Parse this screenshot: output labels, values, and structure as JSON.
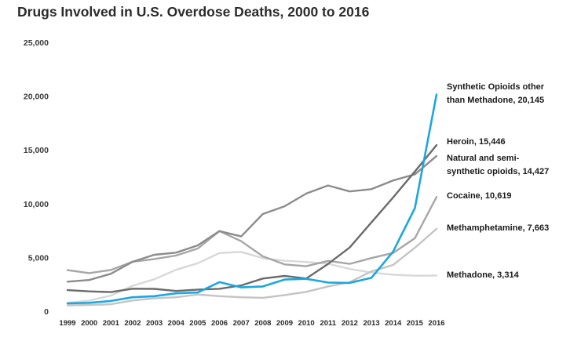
{
  "chart_data": {
    "type": "line",
    "title": "Drugs Involved in U.S. Overdose Deaths, 2000 to 2016",
    "xlabel": "",
    "ylabel": "",
    "x": [
      1999,
      2000,
      2001,
      2002,
      2003,
      2004,
      2005,
      2006,
      2007,
      2008,
      2009,
      2010,
      2011,
      2012,
      2013,
      2014,
      2015,
      2016
    ],
    "x_tick_labels": [
      "1999",
      "2000",
      "2001",
      "2002",
      "2003",
      "2004",
      "2005",
      "2006",
      "2007",
      "2008",
      "2009",
      "2010",
      "2011",
      "2012",
      "2013",
      "2014",
      "2015",
      "2016"
    ],
    "ylim": [
      0,
      25000
    ],
    "y_ticks": [
      0,
      5000,
      10000,
      15000,
      20000,
      25000
    ],
    "y_tick_labels": [
      "0",
      "5,000",
      "10,000",
      "15,000",
      "20,000",
      "25,000"
    ],
    "grid": false,
    "legend": "none",
    "series": [
      {
        "name": "Synthetic Opioids other than Methadone, 20,145",
        "label_lines": [
          "Synthetic Opioids other",
          "than Methadone, 20,145"
        ],
        "color": "#1ca7e0",
        "values": [
          730,
          782,
          957,
          1295,
          1400,
          1664,
          1742,
          2707,
          2213,
          2306,
          2946,
          3007,
          2666,
          2628,
          3105,
          5544,
          9580,
          20145
        ]
      },
      {
        "name": "Heroin, 15,446",
        "label_lines": [
          "Heroin, 15,446"
        ],
        "color": "#6b6b6b",
        "values": [
          1960,
          1842,
          1779,
          2089,
          2080,
          1878,
          2009,
          2088,
          2399,
          3041,
          3278,
          3036,
          4397,
          5925,
          8257,
          10574,
          12989,
          15446
        ]
      },
      {
        "name": "Natural and semi-synthetic opioids, 14,427",
        "label_lines": [
          "Natural and semi-",
          "synthetic opioids, 14,427"
        ],
        "color": "#8c8c8c",
        "values": [
          2749,
          2900,
          3484,
          4596,
          5250,
          5447,
          6120,
          7450,
          6950,
          9040,
          9760,
          10940,
          11693,
          11140,
          11346,
          12159,
          12727,
          14427
        ]
      },
      {
        "name": "Cocaine, 10,619",
        "label_lines": [
          "Cocaine, 10,619"
        ],
        "color": "#a6a6a6",
        "values": [
          3822,
          3544,
          3833,
          4599,
          4857,
          5173,
          5831,
          7450,
          6512,
          5100,
          4350,
          4183,
          4681,
          4404,
          4944,
          5415,
          6784,
          10619
        ]
      },
      {
        "name": "Methamphetamine, 7,663",
        "label_lines": [
          "Methamphetamine, 7,663"
        ],
        "color": "#c4c4c4",
        "values": [
          547,
          578,
          650,
          1000,
          1200,
          1300,
          1550,
          1400,
          1300,
          1250,
          1500,
          1800,
          2300,
          2700,
          3700,
          4300,
          5900,
          7663
        ]
      },
      {
        "name": "Methadone, 3,314",
        "label_lines": [
          "Methadone, 3,314"
        ],
        "color": "#d8d8d8",
        "values": [
          784,
          986,
          1456,
          2358,
          2972,
          3845,
          4460,
          5406,
          5518,
          4924,
          4696,
          4577,
          4418,
          3932,
          3591,
          3400,
          3301,
          3314
        ]
      }
    ]
  }
}
